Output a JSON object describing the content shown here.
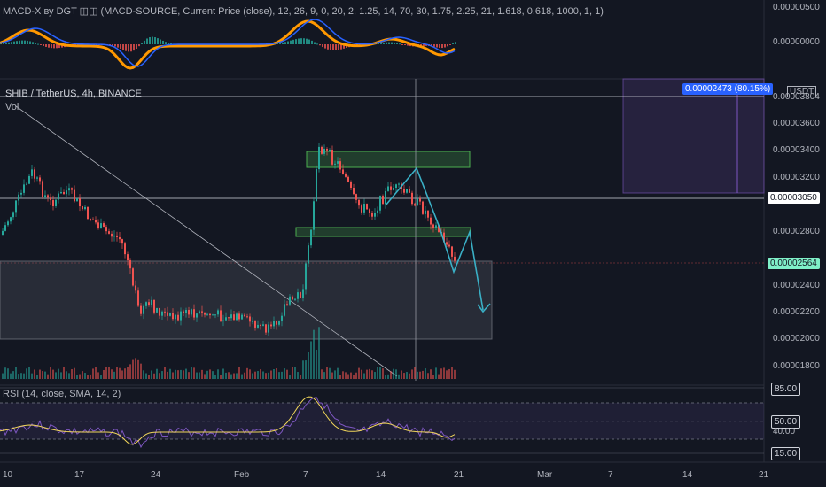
{
  "macd_panel": {
    "title": "MACD-X ву DGT ◫◫ (MACD-SOURCE, Current Price (close), 12, 26, 9, 0, 20, 2, 1.25, 14, 70, 30, 1.75, 2.25, 21, 1.618, 0.618, 1000, 1, 1)",
    "axis_labels": [
      "0.00000500",
      "0.00000000"
    ]
  },
  "main_panel": {
    "symbol_title": "SHIB / TetherUS, 4h, BINANCE",
    "volume_label": "Vol",
    "currency": "USDT",
    "axis_labels": [
      "0.00003600",
      "0.00003400",
      "0.00003200",
      "0.00002800",
      "0.00002400",
      "0.00002200",
      "0.00002000",
      "0.00001800"
    ],
    "target_label": "0.00002473 (80.15%)",
    "hline_label": "0.00003050",
    "current_price_label": "0.00002564",
    "upper_line_label": "0.00003804"
  },
  "rsi_panel": {
    "title": "RSI (14, close, SMA, 14, 2)",
    "axis_labels": [
      "85.00",
      "50.00",
      "40.00",
      "15.00"
    ]
  },
  "time_axis": {
    "labels": [
      "10",
      "17",
      "24",
      "Feb",
      "7",
      "14",
      "21",
      "Mar",
      "7",
      "14",
      "21"
    ]
  },
  "colors": {
    "background": "#131722",
    "up": "#26a69a",
    "down": "#ef5350",
    "macd_blue": "#2962ff",
    "signal_orange": "#ff9800",
    "rsi_line": "#7e57c2",
    "rsi_ma": "#f2d75a",
    "projection": "#3ab0c6",
    "zone_green": "#4caf50",
    "target_blue": "#2962ff",
    "current_price": "#7ff0c8"
  }
}
